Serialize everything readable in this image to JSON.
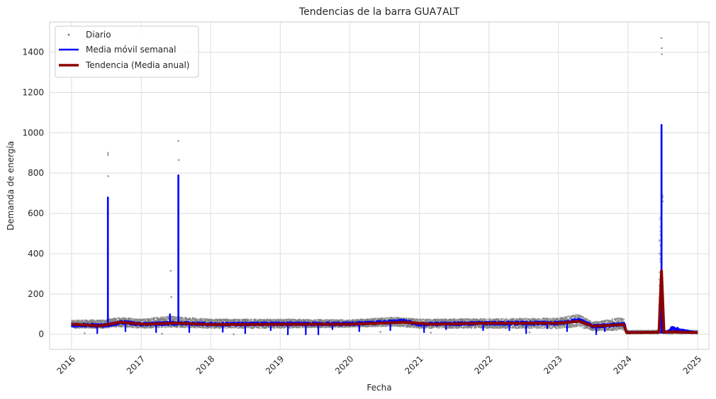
{
  "chart_data": {
    "type": "line",
    "title": "Tendencias de la barra GUA7ALT",
    "xlabel": "Fecha",
    "ylabel": "Demanda de energía",
    "x_ticks": [
      "2016",
      "2017",
      "2018",
      "2019",
      "2020",
      "2021",
      "2022",
      "2023",
      "2024",
      "2025"
    ],
    "y_ticks": [
      "0",
      "200",
      "400",
      "600",
      "800",
      "1000",
      "1200",
      "1400"
    ],
    "xlim": [
      "2015-09-08",
      "2025-03-01"
    ],
    "ylim": [
      -75,
      1550
    ],
    "grid": true,
    "legend_position": "top-left",
    "colors": {
      "daily": "#808080",
      "weekly": "#0000ff",
      "annual": "#8b0000"
    },
    "series": [
      {
        "name": "Diario",
        "style": "scatter",
        "band": [
          [
            "2016-01-01",
            30,
            70
          ],
          [
            "2016-07-01",
            30,
            72
          ],
          [
            "2016-09-01",
            38,
            85
          ],
          [
            "2017-01-01",
            30,
            76
          ],
          [
            "2017-06-01",
            35,
            90
          ],
          [
            "2018-01-01",
            30,
            75
          ],
          [
            "2019-01-01",
            30,
            75
          ],
          [
            "2020-01-01",
            35,
            72
          ],
          [
            "2020-09-01",
            40,
            85
          ],
          [
            "2021-01-01",
            30,
            75
          ],
          [
            "2022-01-01",
            30,
            78
          ],
          [
            "2023-01-01",
            28,
            80
          ],
          [
            "2023-04-15",
            38,
            100
          ],
          [
            "2023-07-01",
            18,
            60
          ],
          [
            "2023-12-10",
            20,
            85
          ],
          [
            "2023-12-25",
            3,
            18
          ],
          [
            "2024-06-10",
            3,
            20
          ],
          [
            "2024-06-15",
            150,
            700
          ],
          [
            "2024-07-05",
            3,
            20
          ],
          [
            "2024-12-31",
            3,
            18
          ]
        ],
        "outliers": [
          [
            "2016-07-10",
            900
          ],
          [
            "2016-07-11",
            890
          ],
          [
            "2016-07-12",
            785
          ],
          [
            "2017-06-05",
            315
          ],
          [
            "2017-06-08",
            185
          ],
          [
            "2017-07-15",
            960
          ],
          [
            "2017-07-17",
            865
          ],
          [
            "2024-06-25",
            1470
          ],
          [
            "2024-06-26",
            1420
          ],
          [
            "2024-06-27",
            1390
          ],
          [
            "2024-06-30",
            690
          ],
          [
            "2024-07-01",
            680
          ],
          [
            "2024-07-02",
            660
          ],
          [
            "2016-03-10",
            5
          ],
          [
            "2017-04-20",
            3
          ],
          [
            "2018-05-02",
            0
          ],
          [
            "2019-02-08",
            0
          ],
          [
            "2019-05-15",
            0
          ],
          [
            "2019-07-20",
            0
          ],
          [
            "2020-06-10",
            12
          ],
          [
            "2021-03-02",
            8
          ],
          [
            "2022-08-02",
            10
          ]
        ]
      },
      {
        "name": "Media móvil semanal",
        "style": "line",
        "baseline": [
          [
            "2016-01-01",
            45
          ],
          [
            "2016-07-01",
            45
          ],
          [
            "2016-10-01",
            60
          ],
          [
            "2017-01-01",
            50
          ],
          [
            "2017-07-01",
            55
          ],
          [
            "2018-01-01",
            50
          ],
          [
            "2019-01-01",
            52
          ],
          [
            "2020-01-01",
            52
          ],
          [
            "2020-10-15",
            65
          ],
          [
            "2021-01-01",
            50
          ],
          [
            "2022-01-01",
            55
          ],
          [
            "2023-01-01",
            55
          ],
          [
            "2023-04-20",
            70
          ],
          [
            "2023-07-01",
            40
          ],
          [
            "2023-12-15",
            50
          ],
          [
            "2023-12-25",
            10
          ],
          [
            "2024-06-01",
            10
          ],
          [
            "2024-07-20",
            10
          ],
          [
            "2024-08-20",
            30
          ],
          [
            "2024-12-31",
            8
          ]
        ],
        "spikes": [
          [
            "2016-07-10",
            680
          ],
          [
            "2017-06-01",
            100
          ],
          [
            "2017-07-15",
            790
          ],
          [
            "2024-06-25",
            1040
          ]
        ],
        "dips": [
          [
            "2016-05-15",
            5
          ],
          [
            "2016-10-10",
            15
          ],
          [
            "2017-03-20",
            10
          ],
          [
            "2017-09-10",
            10
          ],
          [
            "2018-03-05",
            12
          ],
          [
            "2018-07-01",
            5
          ],
          [
            "2018-11-12",
            20
          ],
          [
            "2019-02-10",
            0
          ],
          [
            "2019-05-15",
            0
          ],
          [
            "2019-07-20",
            0
          ],
          [
            "2019-10-02",
            25
          ],
          [
            "2020-02-20",
            15
          ],
          [
            "2020-08-01",
            20
          ],
          [
            "2021-01-25",
            10
          ],
          [
            "2021-05-20",
            25
          ],
          [
            "2021-12-01",
            20
          ],
          [
            "2022-04-18",
            20
          ],
          [
            "2022-07-15",
            5
          ],
          [
            "2022-11-03",
            30
          ],
          [
            "2023-02-15",
            15
          ],
          [
            "2023-07-18",
            0
          ],
          [
            "2023-09-01",
            15
          ]
        ]
      },
      {
        "name": "Tendencia (Media anual)",
        "style": "line",
        "points": [
          [
            "2016-01-01",
            50
          ],
          [
            "2016-06-01",
            42
          ],
          [
            "2016-09-15",
            60
          ],
          [
            "2017-01-15",
            50
          ],
          [
            "2017-07-01",
            56
          ],
          [
            "2018-01-01",
            48
          ],
          [
            "2019-01-01",
            50
          ],
          [
            "2020-01-01",
            50
          ],
          [
            "2020-10-15",
            60
          ],
          [
            "2021-03-01",
            50
          ],
          [
            "2022-01-01",
            55
          ],
          [
            "2023-01-01",
            55
          ],
          [
            "2023-04-20",
            65
          ],
          [
            "2023-07-01",
            40
          ],
          [
            "2023-12-10",
            48
          ],
          [
            "2023-12-25",
            8
          ],
          [
            "2024-06-12",
            10
          ],
          [
            "2024-06-25",
            315
          ],
          [
            "2024-07-08",
            10
          ],
          [
            "2024-08-20",
            12
          ],
          [
            "2024-12-31",
            8
          ]
        ]
      }
    ]
  }
}
